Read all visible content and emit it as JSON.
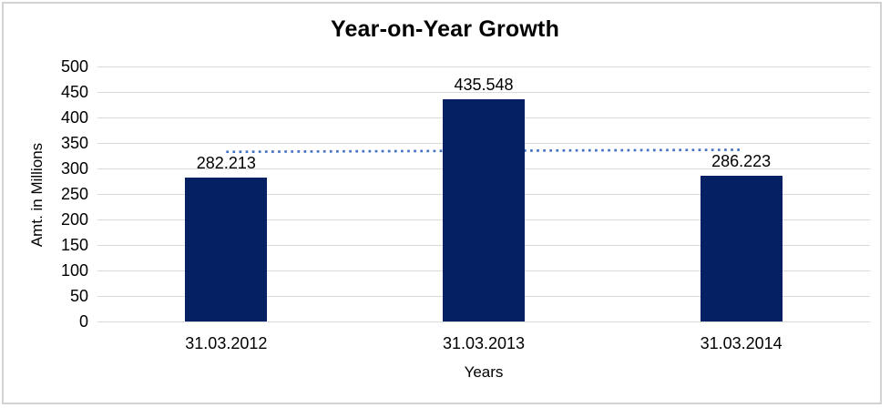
{
  "chart": {
    "title": "Year-on-Year Growth",
    "x_axis_title": "Years",
    "y_axis_title": "Amt. in Millions"
  },
  "chart_data": {
    "type": "bar",
    "title": "Year-on-Year Growth",
    "categories": [
      "31.03.2012",
      "31.03.2013",
      "31.03.2014"
    ],
    "values": [
      282.213,
      435.548,
      286.223
    ],
    "data_labels": [
      "282.213",
      "435.548",
      "286.223"
    ],
    "xlabel": "Years",
    "ylabel": "Amt. in Millions",
    "ylim": [
      0,
      500
    ],
    "yticks": [
      0,
      50,
      100,
      150,
      200,
      250,
      300,
      350,
      400,
      450,
      500
    ],
    "grid": true,
    "legend": "none",
    "trendline": {
      "kind": "linear",
      "style": "dotted",
      "behind_bars": true
    },
    "colors": {
      "bar": "#052164",
      "gridline": "#D9D9D9",
      "trendline": "#4472C4",
      "text": "#000000",
      "frame_border": "#D2D2D2",
      "background": "#FFFFFF"
    }
  }
}
